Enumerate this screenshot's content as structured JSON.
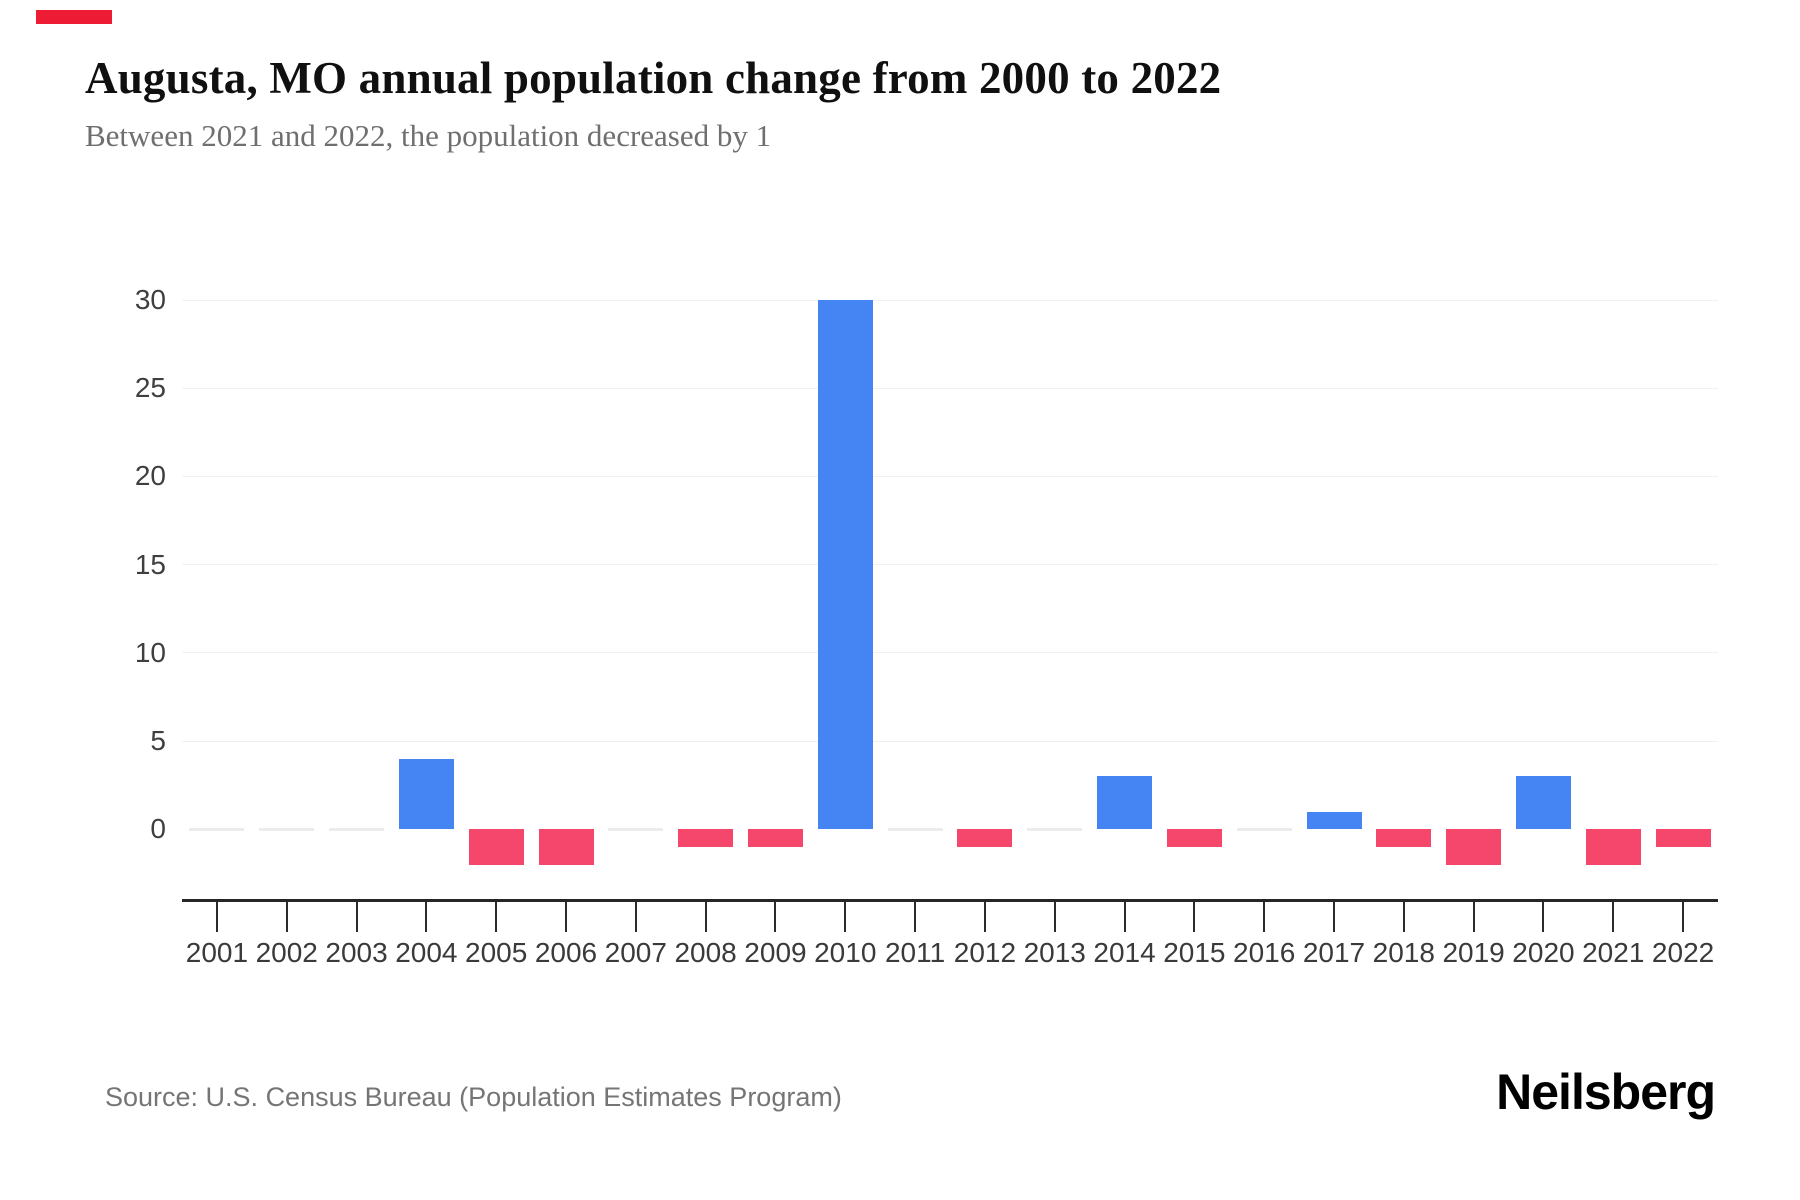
{
  "accent_color": "#ED1B34",
  "header": {
    "title": "Augusta, MO annual population change from 2000 to 2022",
    "subtitle": "Between 2021 and 2022, the population decreased by 1"
  },
  "footer": {
    "source": "Source: U.S. Census Bureau (Population Estimates Program)",
    "brand": "Neilsberg"
  },
  "chart_data": {
    "type": "bar",
    "title": "Augusta, MO annual population change from 2000 to 2022",
    "subtitle": "Between 2021 and 2022, the population decreased by 1",
    "categories": [
      "2001",
      "2002",
      "2003",
      "2004",
      "2005",
      "2006",
      "2007",
      "2008",
      "2009",
      "2010",
      "2011",
      "2012",
      "2013",
      "2014",
      "2015",
      "2016",
      "2017",
      "2018",
      "2019",
      "2020",
      "2021",
      "2022"
    ],
    "values": [
      0,
      0,
      0,
      4,
      -2,
      -2,
      0,
      -1,
      -1,
      30,
      0,
      -1,
      0,
      3,
      -1,
      0,
      1,
      -1,
      -2,
      3,
      -2,
      -1
    ],
    "xlabel": "",
    "ylabel": "",
    "yticks": [
      30,
      25,
      20,
      15,
      10,
      5,
      0
    ],
    "ylim": [
      -4,
      30
    ],
    "grid": true,
    "legend": false,
    "colors": {
      "positive_bar": "#4484F3",
      "negative_bar": "#F5476B",
      "zero_dash": "#ECECEC"
    }
  }
}
